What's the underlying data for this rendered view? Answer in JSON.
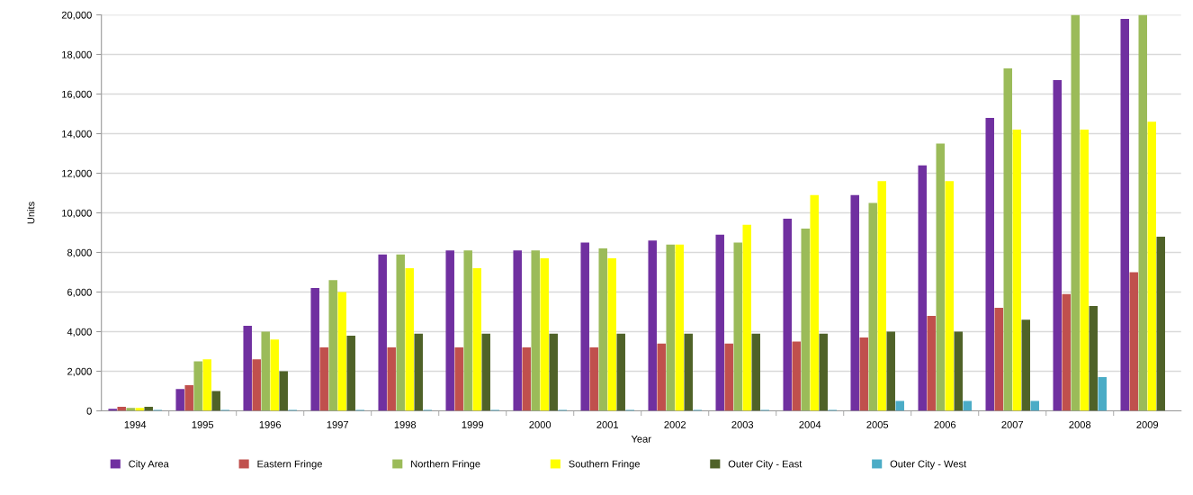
{
  "chart_data": {
    "type": "bar",
    "xlabel": "Year",
    "ylabel": "Units",
    "categories": [
      "1994",
      "1995",
      "1996",
      "1997",
      "1998",
      "1999",
      "2000",
      "2001",
      "2002",
      "2003",
      "2004",
      "2005",
      "2006",
      "2007",
      "2008",
      "2009"
    ],
    "series": [
      {
        "name": "City Area",
        "color": "#7030a0",
        "values": [
          100,
          1100,
          4300,
          6200,
          7900,
          8100,
          8100,
          8500,
          8600,
          8900,
          9700,
          10900,
          12400,
          14800,
          16700,
          19800
        ]
      },
      {
        "name": "Eastern Fringe",
        "color": "#c0504d",
        "values": [
          200,
          1300,
          2600,
          3200,
          3200,
          3200,
          3200,
          3200,
          3400,
          3400,
          3500,
          3700,
          4800,
          5200,
          5900,
          7000
        ]
      },
      {
        "name": "Northern Fringe",
        "color": "#9bbb59",
        "values": [
          150,
          2500,
          4000,
          6600,
          7900,
          8100,
          8100,
          8200,
          8400,
          8500,
          9200,
          10500,
          13500,
          17300,
          20000,
          20000
        ]
      },
      {
        "name": "Southern Fringe",
        "color": "#ffff00",
        "values": [
          150,
          2600,
          3600,
          6000,
          7200,
          7200,
          7700,
          7700,
          8400,
          9400,
          10900,
          11600,
          11600,
          14200,
          14200,
          14600
        ]
      },
      {
        "name": "Outer City - East",
        "color": "#4f6228",
        "values": [
          200,
          1000,
          2000,
          3800,
          3900,
          3900,
          3900,
          3900,
          3900,
          3900,
          3900,
          4000,
          4000,
          4600,
          5300,
          8800
        ]
      },
      {
        "name": "Outer City - West",
        "color": "#4bacc6",
        "values": [
          50,
          50,
          50,
          50,
          50,
          50,
          50,
          50,
          50,
          50,
          50,
          500,
          500,
          500,
          1700,
          null
        ]
      }
    ],
    "ylim": [
      0,
      20000
    ],
    "yticks": [
      {
        "value": 0,
        "label": "0"
      },
      {
        "value": 2000,
        "label": "2,000"
      },
      {
        "value": 4000,
        "label": "4,000"
      },
      {
        "value": 6000,
        "label": "6,000"
      },
      {
        "value": 8000,
        "label": "8,000"
      },
      {
        "value": 10000,
        "label": "10,000"
      },
      {
        "value": 12000,
        "label": "12,000"
      },
      {
        "value": 14000,
        "label": "14,000"
      },
      {
        "value": 16000,
        "label": "16,000"
      },
      {
        "value": 18000,
        "label": "18,000"
      },
      {
        "value": 20000,
        "label": "20,000"
      }
    ],
    "grid": "y",
    "legend": "bottom"
  }
}
